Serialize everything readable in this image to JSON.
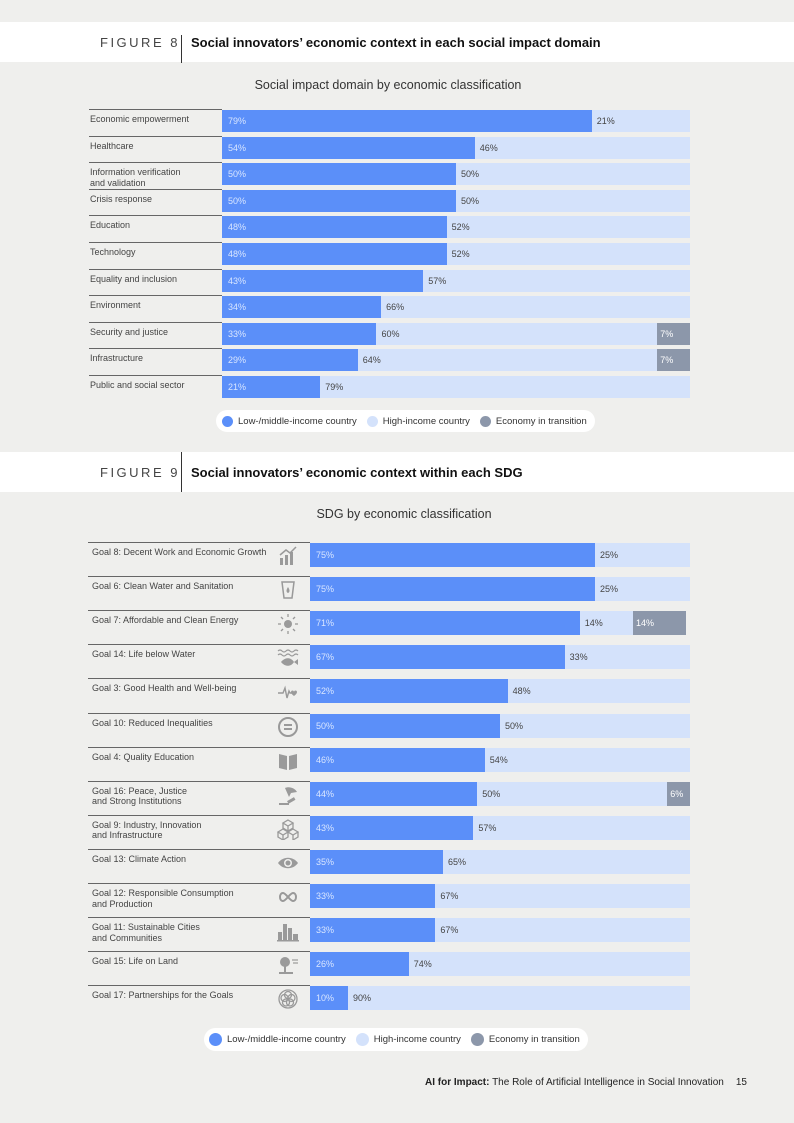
{
  "colors": {
    "low": "#5b8ff9",
    "high": "#d4e2fb",
    "transition": "#8c97aa"
  },
  "figure8": {
    "label": "FIGURE 8",
    "title": "Social innovators’ economic context in each social impact domain",
    "chart_title": "Social impact domain by economic classification"
  },
  "figure9": {
    "label": "FIGURE 9",
    "title": "Social innovators’ economic context within each SDG",
    "chart_title": "SDG by economic classification"
  },
  "legend": {
    "low": "Low-/middle-income country",
    "high": "High-income country",
    "transition": "Economy in transition"
  },
  "chart_data": [
    {
      "type": "bar",
      "orientation": "horizontal-stacked",
      "title": "Social impact domain by economic classification",
      "categories": [
        "Economic empowerment",
        "Healthcare",
        "Information verification\nand validation",
        "Crisis response",
        "Education",
        "Technology",
        "Equality and inclusion",
        "Environment",
        "Security and justice",
        "Infrastructure",
        "Public and social sector"
      ],
      "series": [
        {
          "name": "Low-/middle-income country",
          "values": [
            79,
            54,
            50,
            50,
            48,
            48,
            43,
            34,
            33,
            29,
            21
          ]
        },
        {
          "name": "High-income country",
          "values": [
            21,
            46,
            50,
            50,
            52,
            52,
            57,
            66,
            60,
            64,
            79
          ]
        },
        {
          "name": "Economy in transition",
          "values": [
            0,
            0,
            0,
            0,
            0,
            0,
            0,
            0,
            7,
            7,
            0
          ]
        }
      ],
      "unit": "%",
      "legend": "bottom"
    },
    {
      "type": "bar",
      "orientation": "horizontal-stacked",
      "title": "SDG by economic classification",
      "categories": [
        "Goal 8: Decent Work and Economic Growth",
        "Goal 6: Clean Water and Sanitation",
        "Goal 7: Affordable and Clean Energy",
        "Goal 14: Life below Water",
        "Goal 3: Good Health and Well-being",
        "Goal 10: Reduced Inequalities",
        "Goal 4: Quality Education",
        "Goal 16: Peace, Justice\nand Strong Institutions",
        "Goal 9: Industry, Innovation\nand Infrastructure",
        "Goal 13: Climate Action",
        "Goal 12: Responsible Consumption\nand Production",
        "Goal 11: Sustainable Cities\nand Communities",
        "Goal 15: Life on Land",
        "Goal 17: Partnerships for the Goals"
      ],
      "icons": [
        "growth-chart-icon",
        "water-drop-icon",
        "sun-energy-icon",
        "fish-waves-icon",
        "heartbeat-icon",
        "equals-circle-icon",
        "book-icon",
        "dove-gavel-icon",
        "cubes-icon",
        "eye-globe-icon",
        "infinity-icon",
        "city-buildings-icon",
        "tree-icon",
        "partnership-flower-icon"
      ],
      "series": [
        {
          "name": "Low-/middle-income country",
          "values": [
            75,
            75,
            71,
            67,
            52,
            50,
            46,
            44,
            43,
            35,
            33,
            33,
            26,
            10
          ]
        },
        {
          "name": "High-income country",
          "values": [
            25,
            25,
            14,
            33,
            48,
            50,
            54,
            50,
            57,
            65,
            67,
            67,
            74,
            90
          ]
        },
        {
          "name": "Economy in transition",
          "values": [
            0,
            0,
            14,
            0,
            0,
            0,
            0,
            6,
            0,
            0,
            0,
            0,
            0,
            0
          ]
        }
      ],
      "unit": "%",
      "legend": "bottom"
    }
  ],
  "footer": {
    "bold": "AI for Impact:",
    "rest": " The Role of Artificial Intelligence in Social Innovation",
    "page": "15"
  }
}
